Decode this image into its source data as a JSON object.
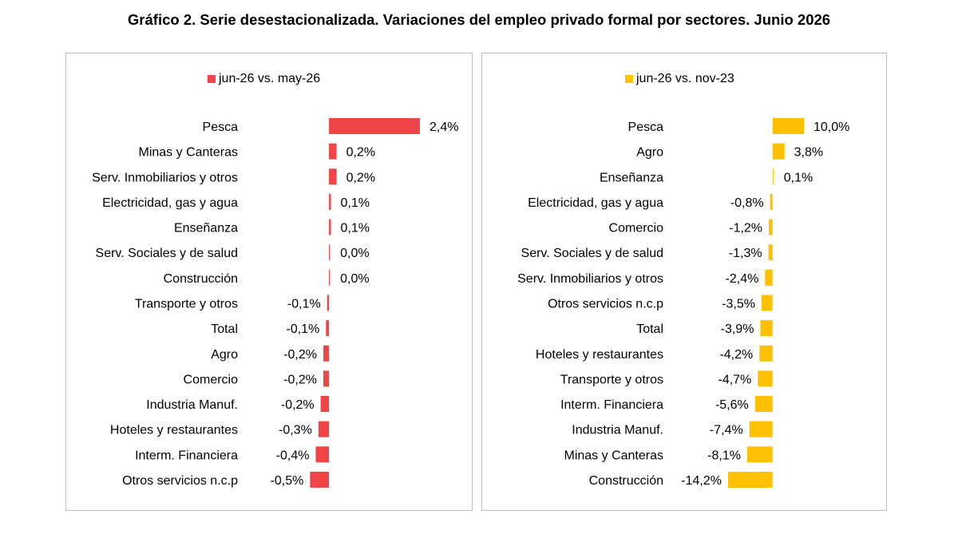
{
  "page": {
    "title": "Gráfico 2. Serie desestacionalizada. Variaciones del empleo privado formal por sectores. Junio 2026"
  },
  "chart_data": [
    {
      "type": "bar",
      "orientation": "horizontal",
      "legend": "jun-26 vs. may-26",
      "legend_position": "top",
      "color": "#f04446",
      "categories": [
        "Pesca",
        "Minas y Canteras",
        "Serv. Inmobiliarios y otros",
        "Electricidad, gas y agua",
        "Enseñanza",
        "Serv. Sociales y de salud",
        "Construcción",
        "Transporte y otros",
        "Total",
        "Agro",
        "Comercio",
        "Industria Manuf.",
        "Hoteles y restaurantes",
        "Interm. Financiera",
        "Otros servicios n.c.p"
      ],
      "values": [
        2.4,
        0.2,
        0.2,
        0.05,
        0.05,
        0.02,
        0.0,
        -0.05,
        -0.08,
        -0.15,
        -0.15,
        -0.22,
        -0.28,
        -0.35,
        -0.5
      ],
      "labels": [
        "2,4%",
        "0,2%",
        "0,2%",
        "0,1%",
        "0,1%",
        "0,0%",
        "0,0%",
        "-0,1%",
        "-0,1%",
        "-0,2%",
        "-0,2%",
        "-0,2%",
        "-0,3%",
        "-0,4%",
        "-0,5%"
      ],
      "xlim": [
        -0.55,
        2.4
      ],
      "grid": false
    },
    {
      "type": "bar",
      "orientation": "horizontal",
      "legend": "jun-26 vs. nov-23",
      "legend_position": "top",
      "color": "#ffc000",
      "categories": [
        "Pesca",
        "Agro",
        "Enseñanza",
        "Electricidad, gas y agua",
        "Comercio",
        "Serv. Sociales y de salud",
        "Serv. Inmobiliarios y otros",
        "Otros servicios n.c.p",
        "Total",
        "Hoteles y restaurantes",
        "Transporte y otros",
        "Interm. Financiera",
        "Industria Manuf.",
        "Minas y Canteras",
        "Construcción"
      ],
      "values": [
        10.0,
        3.8,
        0.1,
        -0.8,
        -1.2,
        -1.3,
        -2.4,
        -3.5,
        -3.9,
        -4.2,
        -4.7,
        -5.6,
        -7.4,
        -8.1,
        -14.2
      ],
      "labels": [
        "10,0%",
        "3,8%",
        "0,1%",
        "-0,8%",
        "-1,2%",
        "-1,3%",
        "-2,4%",
        "-3,5%",
        "-3,9%",
        "-4,2%",
        "-4,7%",
        "-5,6%",
        "-7,4%",
        "-8,1%",
        "-14,2%"
      ],
      "xlim": [
        -14.2,
        10.0
      ],
      "grid": false
    }
  ]
}
